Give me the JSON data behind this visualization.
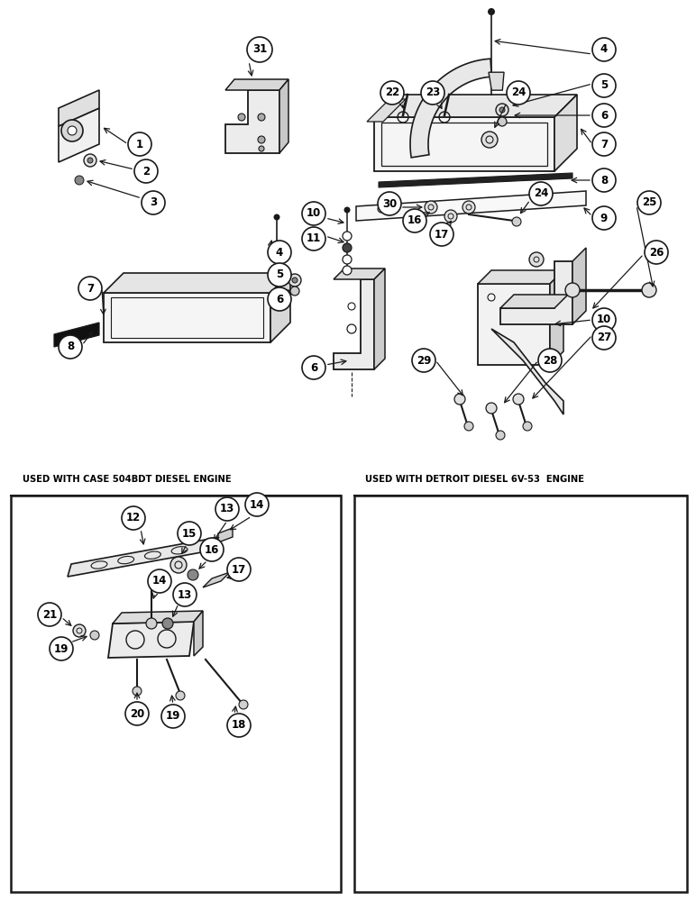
{
  "bg_color": "#ffffff",
  "line_color": "#1a1a1a",
  "fig_width": 7.72,
  "fig_height": 10.0,
  "bottom_left_title": "USED WITH CASE 504BDT DIESEL ENGINE",
  "bottom_right_title": "USED WITH DETROIT DIESEL 6V-53  ENGINE"
}
